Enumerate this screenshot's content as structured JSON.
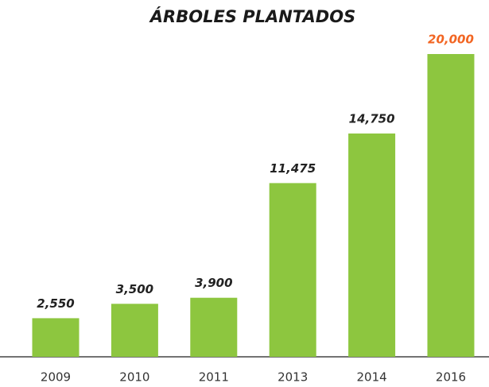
{
  "chart_data": {
    "type": "bar",
    "title": "ÁRBOLES PLANTADOS",
    "categories": [
      "2009",
      "2010",
      "2011",
      "2013",
      "2014",
      "2016"
    ],
    "values": [
      2550,
      3500,
      3900,
      11475,
      14750,
      20000
    ],
    "value_labels": [
      "2,550",
      "3,500",
      "3,900",
      "11,475",
      "14,750",
      "20,000"
    ],
    "color": "#8dc63f",
    "value_label_colors": [
      "#222222",
      "#222222",
      "#222222",
      "#222222",
      "#222222",
      "#f26522"
    ]
  }
}
